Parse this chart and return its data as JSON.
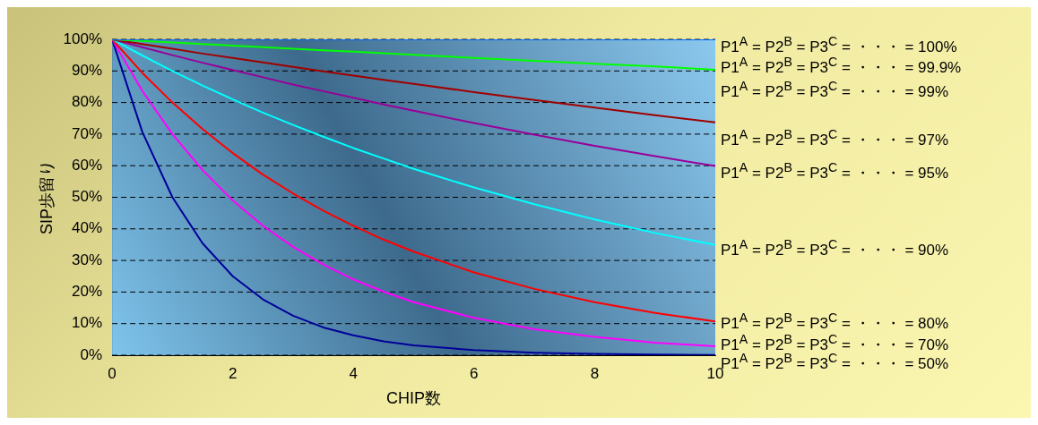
{
  "chart_data": {
    "type": "line",
    "xlabel": "CHIP数",
    "ylabel": "SIP歩留り",
    "x": [
      0,
      0.5,
      1,
      1.5,
      2,
      2.5,
      3,
      3.5,
      4,
      4.5,
      5,
      6,
      7,
      8,
      9,
      10
    ],
    "xlim": [
      0,
      10
    ],
    "xticks": [
      0,
      2,
      4,
      6,
      8,
      10
    ],
    "ylim": [
      0,
      100
    ],
    "yticks": [
      {
        "value": 0,
        "label": "0%"
      },
      {
        "value": 10,
        "label": "10%"
      },
      {
        "value": 20,
        "label": "20%"
      },
      {
        "value": 30,
        "label": "30%"
      },
      {
        "value": 40,
        "label": "40%"
      },
      {
        "value": 50,
        "label": "50%"
      },
      {
        "value": 60,
        "label": "60%"
      },
      {
        "value": 70,
        "label": "70%"
      },
      {
        "value": 80,
        "label": "80%"
      },
      {
        "value": 90,
        "label": "90%"
      },
      {
        "value": 100,
        "label": "100%"
      }
    ],
    "grid": "y",
    "legend": false,
    "marker": "none",
    "line_style": "solid",
    "series": [
      {
        "color": "#0066ff",
        "values": [
          100,
          100,
          100,
          100,
          100,
          100,
          100,
          100,
          100,
          100,
          100,
          100,
          100,
          100,
          100,
          100
        ]
      },
      {
        "color": "#00ff00",
        "values": [
          100,
          99.5,
          99,
          98.5,
          98,
          97.5,
          97,
          96.5,
          96.1,
          95.6,
          95.1,
          94.1,
          93.2,
          92.3,
          91.4,
          90.4
        ]
      },
      {
        "color": "#a00000",
        "values": [
          100,
          98.5,
          97,
          95.5,
          94.1,
          92.7,
          91.3,
          89.9,
          88.5,
          87.2,
          85.9,
          83.3,
          80.8,
          78.4,
          76,
          73.7
        ]
      },
      {
        "color": "#990099",
        "values": [
          100,
          97.5,
          95,
          92.6,
          90.3,
          88,
          85.7,
          83.6,
          81.5,
          79.4,
          77.4,
          73.5,
          69.8,
          66.3,
          63,
          59.9
        ]
      },
      {
        "color": "#00ffff",
        "values": [
          100,
          94.9,
          90,
          85.4,
          81,
          76.8,
          72.9,
          69.2,
          65.6,
          62.3,
          59,
          53.1,
          47.8,
          43,
          38.7,
          34.9
        ]
      },
      {
        "color": "#ff0000",
        "values": [
          100,
          89.4,
          80,
          71.6,
          64,
          57.2,
          51.2,
          45.8,
          41,
          36.6,
          32.8,
          26.2,
          21,
          16.8,
          13.4,
          10.7
        ]
      },
      {
        "color": "#ff00ff",
        "values": [
          100,
          83.7,
          70,
          58.6,
          49,
          41,
          34.3,
          28.7,
          24,
          20.1,
          16.8,
          11.8,
          8.2,
          5.8,
          4,
          2.8
        ]
      },
      {
        "color": "#000099",
        "values": [
          100,
          70.7,
          50,
          35.4,
          25,
          17.7,
          12.5,
          8.8,
          6.3,
          4.4,
          3.1,
          1.6,
          0.8,
          0.4,
          0.2,
          0.1
        ]
      }
    ],
    "annotations": [
      "P1$^{A}$ = P2$^{B}$ = P3$^{C}$ = ・・・ = 100%",
      "P1$^{A}$ = P2$^{B}$ = P3$^{C}$ = ・・・ = 99.9%",
      "P1$^{A}$ = P2$^{B}$ = P3$^{C}$ = ・・・ = 99%",
      "P1$^{A}$ = P2$^{B}$ = P3$^{C}$ = ・・・ = 97%",
      "P1$^{A}$ = P2$^{B}$ = P3$^{C}$ = ・・・ = 95%",
      "P1$^{A}$ = P2$^{B}$ = P3$^{C}$ = ・・・ = 90%",
      "P1$^{A}$ = P2$^{B}$ = P3$^{C}$ = ・・・ = 80%",
      "P1$^{A}$ = P2$^{B}$ = P3$^{C}$ = ・・・ = 70%",
      "P1$^{A}$ = P2$^{B}$ = P3$^{C}$ = ・・・ = 50%"
    ]
  }
}
